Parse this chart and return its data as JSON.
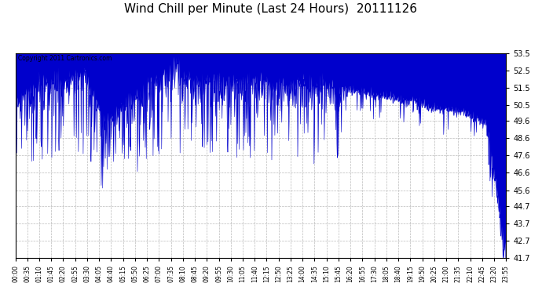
{
  "title": "Wind Chill per Minute (Last 24 Hours)  20111126",
  "copyright_text": "Copyright 2011 Cartronics.com",
  "ylim": [
    41.7,
    53.5
  ],
  "yticks": [
    41.7,
    42.7,
    43.7,
    44.7,
    45.6,
    46.6,
    47.6,
    48.6,
    49.6,
    50.5,
    51.5,
    52.5,
    53.5
  ],
  "line_color": "#0000cc",
  "bg_color": "#ffffff",
  "grid_color": "#bbbbbb",
  "title_fontsize": 11,
  "x_tick_labels": [
    "00:00",
    "00:35",
    "01:10",
    "01:45",
    "02:20",
    "02:55",
    "03:30",
    "04:05",
    "04:40",
    "05:15",
    "05:50",
    "06:25",
    "07:00",
    "07:35",
    "08:10",
    "08:45",
    "09:20",
    "09:55",
    "10:30",
    "11:05",
    "11:40",
    "12:15",
    "12:50",
    "13:25",
    "14:00",
    "14:35",
    "15:10",
    "15:45",
    "16:20",
    "16:55",
    "17:30",
    "18:05",
    "18:40",
    "19:15",
    "19:50",
    "20:25",
    "21:00",
    "21:35",
    "22:10",
    "22:45",
    "23:20",
    "23:55"
  ],
  "num_minutes": 1440
}
